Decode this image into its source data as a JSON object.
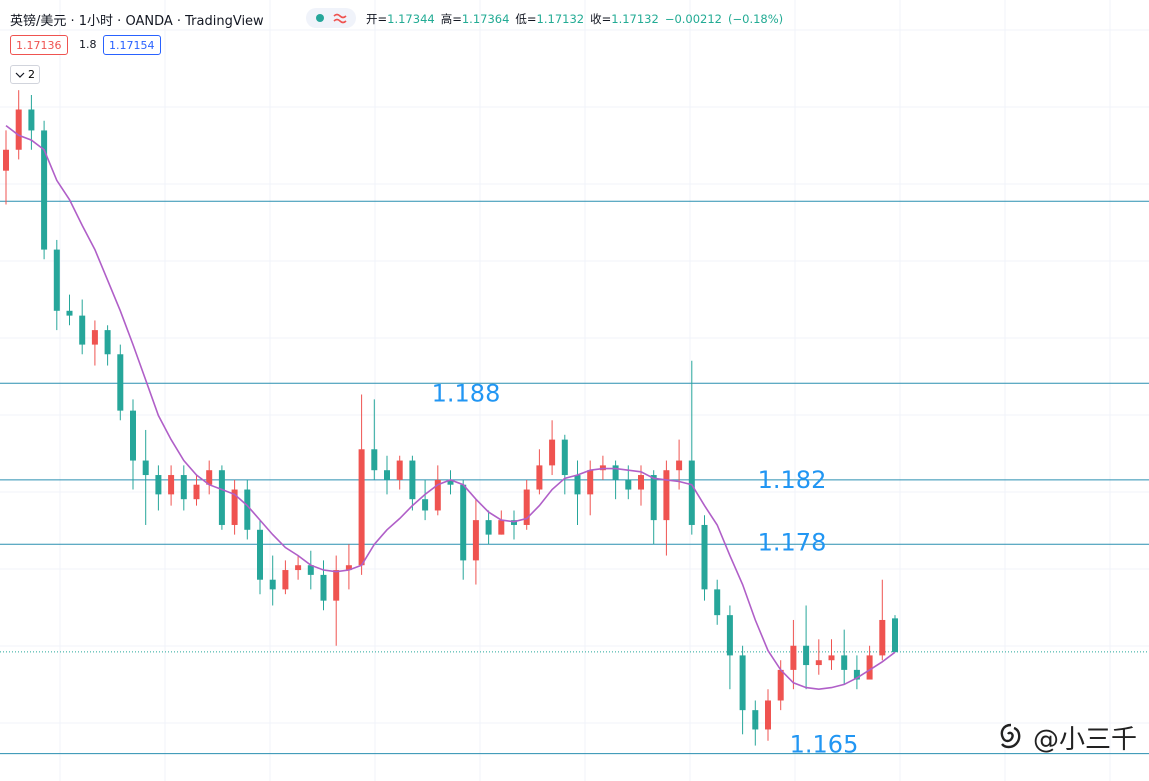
{
  "header": {
    "title": "英镑/美元 · 1小时 · OANDA · TradingView",
    "ohlc_labels": [
      "开=",
      "高=",
      "低=",
      "收="
    ],
    "ohlc_values": [
      1.17344,
      1.17364,
      1.17132,
      1.17132
    ],
    "change": "−0.00212",
    "change_pct": "(−0.18%)",
    "bid": 1.17136,
    "spread": 1.8,
    "ask": 1.17154,
    "indicator_count": 2
  },
  "watermark": "@小三千",
  "chart_data": {
    "type": "candlestick",
    "ylim": [
      1.1633,
      1.2118
    ],
    "up_color": "#ef5350",
    "down_color": "#26a69a",
    "open": [
      1.2012,
      1.2025,
      1.205,
      1.2037,
      1.1963,
      1.1925,
      1.1922,
      1.1904,
      1.1913,
      1.1898,
      1.1863,
      1.1832,
      1.1823,
      1.1811,
      1.1823,
      1.1808,
      1.1817,
      1.1826,
      1.1792,
      1.1814,
      1.1789,
      1.1758,
      1.1752,
      1.1764,
      1.1767,
      1.1761,
      1.1745,
      1.1764,
      1.1767,
      1.1839,
      1.1826,
      1.182,
      1.1832,
      1.1808,
      1.1801,
      1.182,
      1.1817,
      1.177,
      1.1795,
      1.1786,
      1.1795,
      1.1792,
      1.1814,
      1.1829,
      1.1845,
      1.1823,
      1.1811,
      1.1826,
      1.1829,
      1.182,
      1.1814,
      1.1823,
      1.1795,
      1.1826,
      1.1832,
      1.1792,
      1.1752,
      1.1736,
      1.1711,
      1.1677,
      1.1665,
      1.1683,
      1.1702,
      1.1717,
      1.1705,
      1.1708,
      1.1711,
      1.1702,
      1.1696,
      1.1711,
      1.1734
    ],
    "high": [
      1.2037,
      1.2062,
      1.2059,
      1.2043,
      1.1969,
      1.1935,
      1.1932,
      1.1919,
      1.1916,
      1.1904,
      1.187,
      1.1851,
      1.1829,
      1.1829,
      1.1829,
      1.1823,
      1.1832,
      1.1829,
      1.182,
      1.182,
      1.1795,
      1.1773,
      1.177,
      1.1773,
      1.1776,
      1.177,
      1.1773,
      1.178,
      1.1873,
      1.187,
      1.1835,
      1.1835,
      1.1835,
      1.182,
      1.1829,
      1.1826,
      1.182,
      1.1808,
      1.1801,
      1.1801,
      1.1801,
      1.182,
      1.1839,
      1.1857,
      1.1848,
      1.1832,
      1.1832,
      1.1835,
      1.1832,
      1.1829,
      1.1829,
      1.1826,
      1.1832,
      1.1845,
      1.1894,
      1.1798,
      1.1758,
      1.1742,
      1.1717,
      1.1683,
      1.169,
      1.1708,
      1.1733,
      1.1742,
      1.1721,
      1.1721,
      1.1727,
      1.1711,
      1.1717,
      1.1758,
      1.1736
    ],
    "low": [
      1.1991,
      1.2019,
      1.2025,
      1.1957,
      1.1913,
      1.1916,
      1.1898,
      1.1891,
      1.1891,
      1.1857,
      1.1814,
      1.1792,
      1.1801,
      1.1804,
      1.1801,
      1.1804,
      1.1811,
      1.1789,
      1.1786,
      1.1783,
      1.1749,
      1.1742,
      1.1749,
      1.1758,
      1.1752,
      1.1739,
      1.1717,
      1.1752,
      1.1761,
      1.182,
      1.1811,
      1.1814,
      1.1801,
      1.1795,
      1.1798,
      1.1811,
      1.1758,
      1.1755,
      1.178,
      1.1786,
      1.1783,
      1.1789,
      1.1811,
      1.1823,
      1.1811,
      1.1792,
      1.1798,
      1.182,
      1.1808,
      1.1808,
      1.1804,
      1.178,
      1.1773,
      1.1814,
      1.1786,
      1.1745,
      1.173,
      1.169,
      1.1662,
      1.1655,
      1.1658,
      1.1677,
      1.169,
      1.169,
      1.1699,
      1.1702,
      1.1693,
      1.169,
      1.1699,
      1.1708,
      1.1713
    ],
    "close": [
      1.2025,
      1.205,
      1.2037,
      1.1963,
      1.1925,
      1.1922,
      1.1904,
      1.1913,
      1.1898,
      1.1863,
      1.1832,
      1.1823,
      1.1811,
      1.1823,
      1.1808,
      1.1817,
      1.1826,
      1.1792,
      1.1814,
      1.1789,
      1.1758,
      1.1752,
      1.1764,
      1.1767,
      1.1761,
      1.1745,
      1.1764,
      1.1767,
      1.1839,
      1.1826,
      1.182,
      1.1832,
      1.1808,
      1.1801,
      1.182,
      1.1817,
      1.177,
      1.1795,
      1.1786,
      1.1795,
      1.1792,
      1.1814,
      1.1829,
      1.1845,
      1.1823,
      1.1811,
      1.1826,
      1.1829,
      1.182,
      1.1814,
      1.1823,
      1.1795,
      1.1826,
      1.1832,
      1.1792,
      1.1752,
      1.1736,
      1.1711,
      1.1677,
      1.1665,
      1.1683,
      1.1702,
      1.1717,
      1.1705,
      1.1708,
      1.1711,
      1.1702,
      1.1696,
      1.1711,
      1.1733,
      1.1713
    ],
    "ma": {
      "color": "#b05fc8",
      "values": [
        1.204,
        1.2034,
        1.2031,
        1.2025,
        1.2006,
        1.1994,
        1.1978,
        1.1963,
        1.1944,
        1.1925,
        1.1904,
        1.1882,
        1.186,
        1.1845,
        1.1832,
        1.1823,
        1.1817,
        1.1814,
        1.1811,
        1.1804,
        1.1795,
        1.1786,
        1.1778,
        1.1773,
        1.1767,
        1.1764,
        1.1763,
        1.1764,
        1.1767,
        1.178,
        1.1789,
        1.1796,
        1.1804,
        1.1811,
        1.1817,
        1.182,
        1.1817,
        1.1808,
        1.18,
        1.1795,
        1.1794,
        1.1796,
        1.1804,
        1.1814,
        1.1821,
        1.1823,
        1.1826,
        1.1827,
        1.1827,
        1.1826,
        1.1825,
        1.1821,
        1.182,
        1.1819,
        1.1817,
        1.1804,
        1.1792,
        1.1773,
        1.1755,
        1.1733,
        1.1714,
        1.1702,
        1.1694,
        1.1691,
        1.169,
        1.1691,
        1.1693,
        1.1697,
        1.1702,
        1.1707,
        1.1713
      ]
    },
    "levels_color": "#2a8fb0",
    "levels": [
      1.188,
      1.182,
      1.178,
      1.165
    ],
    "unlabeled_levels": [
      1.1993
    ],
    "last_price": 1.17132
  }
}
